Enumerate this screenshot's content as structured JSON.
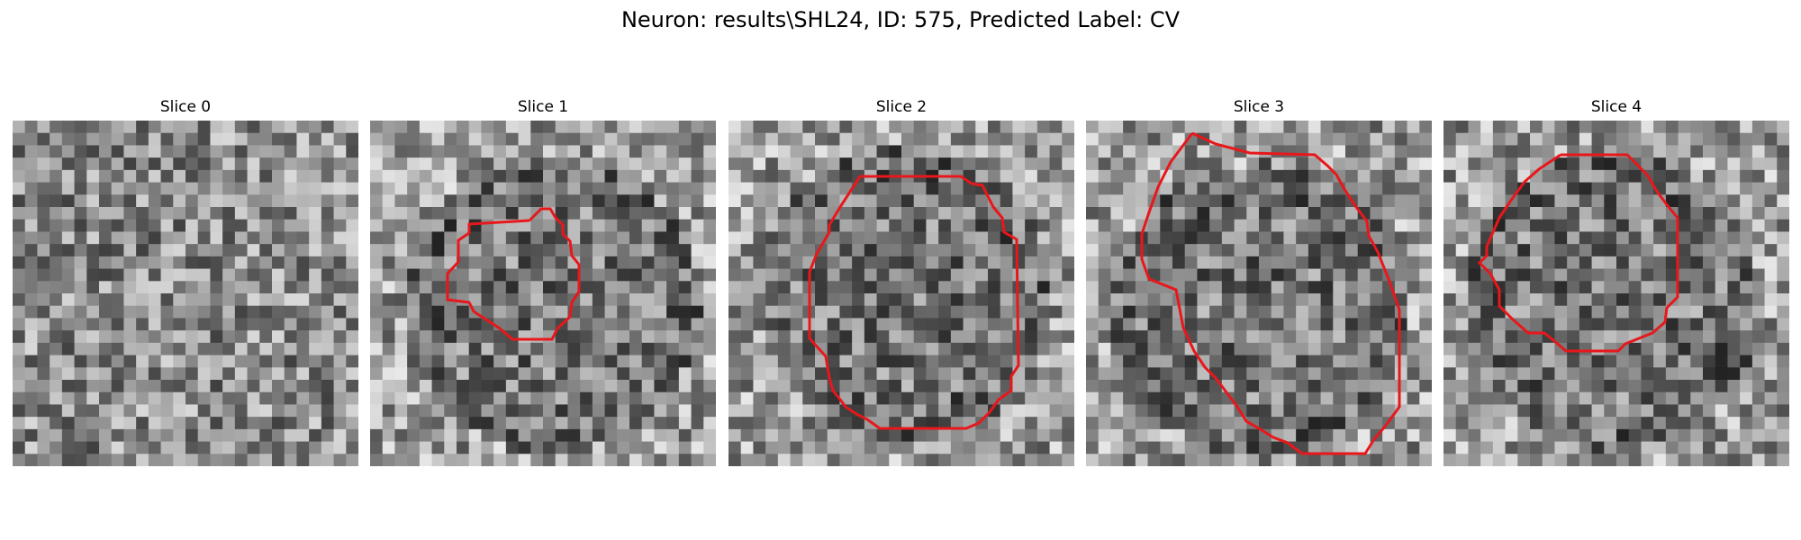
{
  "figure": {
    "title": "Neuron: results\\SHL24, ID: 575, Predicted Label: CV",
    "contour_color": "#e8171b"
  },
  "panels": [
    {
      "title": "Slice 0",
      "has_contour": false
    },
    {
      "title": "Slice 1",
      "has_contour": true
    },
    {
      "title": "Slice 2",
      "has_contour": true
    },
    {
      "title": "Slice 3",
      "has_contour": true
    },
    {
      "title": "Slice 4",
      "has_contour": true
    }
  ]
}
